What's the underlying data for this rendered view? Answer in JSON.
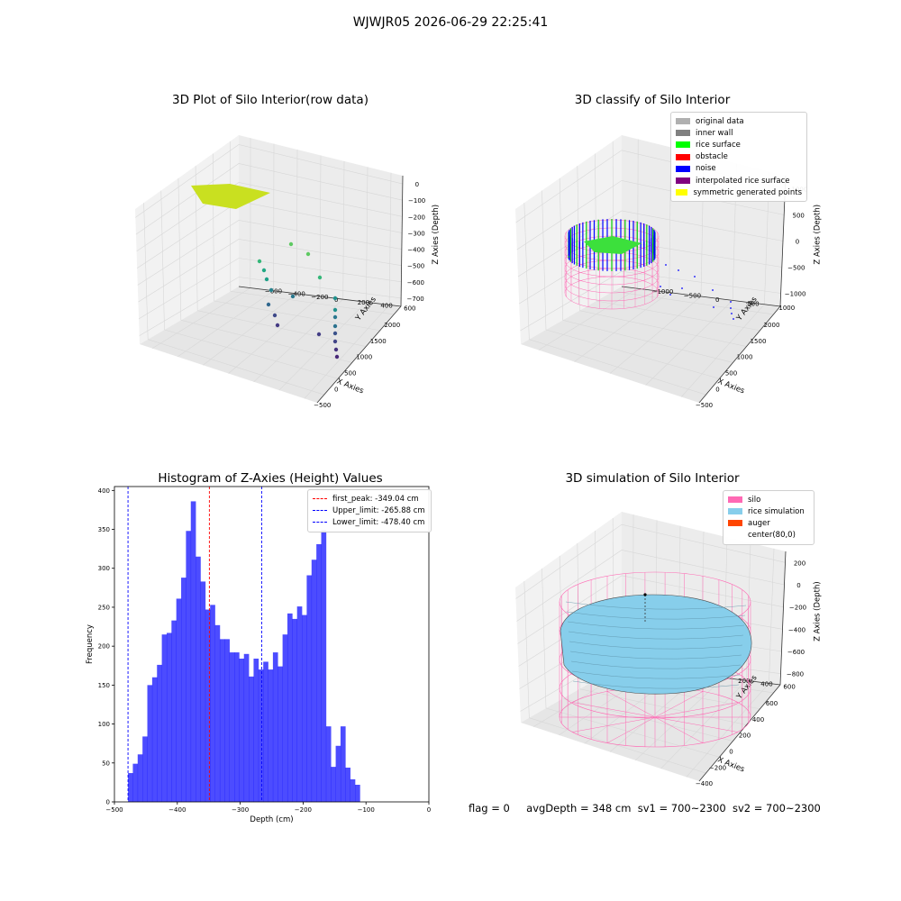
{
  "suptitle": "WJWJR05 2026-06-29 22:25:41",
  "footer": {
    "flag": "flag = 0",
    "avg_depth": "avgDepth = 348 cm",
    "sv1": "sv1 = 700~2300",
    "sv2": "sv2 = 700~2300"
  },
  "panels": {
    "raw": {
      "title": "3D Plot of Silo Interior(row data)",
      "xlabel": "X Axies",
      "ylabel": "Y Axies",
      "zlabel": "Z Axies (Depth)",
      "xticks": [
        "−500",
        "0",
        "500",
        "1000",
        "1500",
        "2000"
      ],
      "yticks": [
        "−600",
        "−400",
        "−200",
        "0",
        "200",
        "400",
        "600"
      ],
      "zticks": [
        "0",
        "−100",
        "−200",
        "−300",
        "−400",
        "−500",
        "−600",
        "−700"
      ]
    },
    "classify": {
      "title": "3D classify of Silo Interior",
      "xlabel": "X Axies",
      "ylabel": "Y Axies",
      "zlabel": "Z Axies (Depth)",
      "xticks": [
        "−500",
        "0",
        "500",
        "1000",
        "1500",
        "2000"
      ],
      "yticks": [
        "−1000",
        "−500",
        "0",
        "500",
        "1000"
      ],
      "zticks": [
        "1000",
        "500",
        "0",
        "−500",
        "−1000"
      ],
      "legend": [
        {
          "label": "original data",
          "color": "#b0b0b0"
        },
        {
          "label": "inner wall",
          "color": "#808080"
        },
        {
          "label": "rice surface",
          "color": "#00ff00"
        },
        {
          "label": "obstacle",
          "color": "#ff0000"
        },
        {
          "label": "noise",
          "color": "#0000ff"
        },
        {
          "label": "interpolated rice surface",
          "color": "#800080"
        },
        {
          "label": "symmetric generated points",
          "color": "#ffff00"
        }
      ]
    },
    "hist": {
      "title": "Histogram of Z-Axies (Height) Values",
      "xlabel": "Depth (cm)",
      "ylabel": "Frequency",
      "legend": [
        {
          "label": "first_peak: -349.04 cm",
          "color": "#ff0000"
        },
        {
          "label": "Upper_limit: -265.88 cm",
          "color": "#0000ff"
        },
        {
          "label": "Lower_limit: -478.40 cm",
          "color": "#0000ff"
        }
      ]
    },
    "sim": {
      "title": "3D simulation of Silo Interior",
      "xlabel": "X Axies",
      "ylabel": "Y Axies",
      "zlabel": "Z Axies (Depth)",
      "xticks": [
        "−400",
        "−200",
        "0",
        "200",
        "400",
        "600"
      ],
      "yticks": [
        "−600",
        "−400",
        "−200",
        "0",
        "200",
        "400",
        "600"
      ],
      "zticks": [
        "200",
        "0",
        "−200",
        "−400",
        "−600",
        "−800"
      ],
      "legend": [
        {
          "label": "silo",
          "color": "#ff69b4"
        },
        {
          "label": "rice simulation",
          "color": "#87ceeb"
        },
        {
          "label": "auger",
          "color": "#ff4500"
        },
        {
          "label": "center(80,0)",
          "color": "#ffffff"
        }
      ]
    }
  },
  "chart_data": [
    {
      "type": "scatter",
      "title": "3D Plot of Silo Interior(row data)",
      "xlabel": "X Axies",
      "ylabel": "Y Axies",
      "zlabel": "Z Axies (Depth)",
      "xlim": [
        -500,
        2000
      ],
      "ylim": [
        -600,
        600
      ],
      "zlim": [
        -750,
        0
      ],
      "colormap": "viridis"
    },
    {
      "type": "scatter",
      "title": "3D classify of Silo Interior",
      "xlabel": "X Axies",
      "ylabel": "Y Axies",
      "zlabel": "Z Axies (Depth)",
      "xlim": [
        -500,
        2000
      ],
      "ylim": [
        -1000,
        1000
      ],
      "zlim": [
        -1000,
        1000
      ],
      "series": [
        {
          "name": "original data",
          "color": "#b0b0b0"
        },
        {
          "name": "inner wall",
          "color": "#808080"
        },
        {
          "name": "rice surface",
          "color": "#00ff00"
        },
        {
          "name": "obstacle",
          "color": "#ff0000"
        },
        {
          "name": "noise",
          "color": "#0000ff"
        },
        {
          "name": "interpolated rice surface",
          "color": "#800080"
        },
        {
          "name": "symmetric generated points",
          "color": "#ffff00"
        }
      ]
    },
    {
      "type": "bar",
      "title": "Histogram of Z-Axies (Height) Values",
      "xlabel": "Depth (cm)",
      "ylabel": "Frequency",
      "xlim": [
        -500,
        0
      ],
      "ylim": [
        0,
        405
      ],
      "xticks": [
        -500,
        -400,
        -300,
        -200,
        -100,
        0
      ],
      "yticks": [
        0,
        50,
        100,
        150,
        200,
        250,
        300,
        350,
        400
      ],
      "bar_color": "#0000ff",
      "bin_start": -478.4,
      "bin_width": 7.68,
      "values": [
        37,
        49,
        61,
        84,
        150,
        160,
        176,
        215,
        217,
        233,
        261,
        288,
        348,
        386,
        315,
        283,
        247,
        253,
        227,
        209,
        209,
        192,
        192,
        184,
        190,
        161,
        184,
        170,
        180,
        170,
        192,
        174,
        215,
        242,
        235,
        251,
        240,
        291,
        311,
        331,
        349,
        97,
        45,
        72,
        97,
        44,
        29,
        22
      ],
      "vlines": [
        {
          "label": "first_peak: -349.04 cm",
          "x": -349.04,
          "color": "#ff0000"
        },
        {
          "label": "Upper_limit: -265.88 cm",
          "x": -265.88,
          "color": "#0000ff"
        },
        {
          "label": "Lower_limit: -478.40 cm",
          "x": -478.4,
          "color": "#0000ff"
        }
      ]
    },
    {
      "type": "surface",
      "title": "3D simulation of Silo Interior",
      "xlabel": "X Axies",
      "ylabel": "Y Axies",
      "zlabel": "Z Axies (Depth)",
      "xlim": [
        -400,
        600
      ],
      "ylim": [
        -600,
        600
      ],
      "zlim": [
        -800,
        200
      ],
      "series": [
        {
          "name": "silo",
          "color": "#ff69b4"
        },
        {
          "name": "rice simulation",
          "color": "#87ceeb"
        },
        {
          "name": "auger",
          "color": "#ff4500"
        },
        {
          "name": "center(80,0)",
          "color": "#ffffff"
        }
      ]
    }
  ]
}
